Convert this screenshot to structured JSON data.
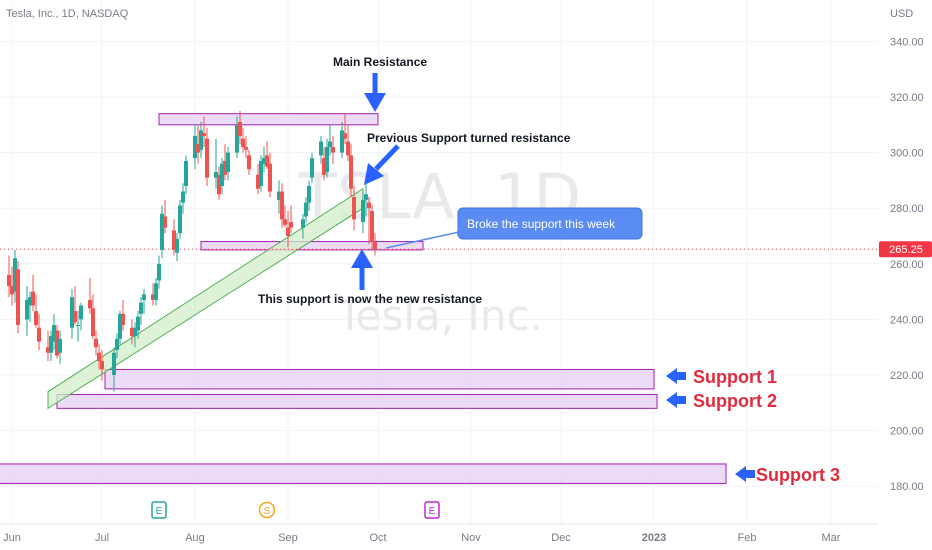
{
  "header": {
    "symbol_info": "Tesla, Inc., 1D, NASDAQ",
    "currency": "USD"
  },
  "watermark": {
    "ticker": "TSLA, 1D",
    "name": "Tesla, Inc."
  },
  "price_tag": "265.25",
  "chart_data": {
    "type": "candlestick",
    "title": "Tesla, Inc., 1D, NASDAQ",
    "ylabel": "USD",
    "ylim": [
      172,
      348
    ],
    "y_ticks": [
      180,
      200,
      220,
      240,
      260,
      280,
      300,
      320,
      340
    ],
    "y_tick_labels": [
      "180.00",
      "200.00",
      "220.00",
      "240.00",
      "260.00",
      "280.00",
      "300.00",
      "320.00",
      "340.00"
    ],
    "x_ticks": [
      "Jun",
      "Jul",
      "Aug",
      "Sep",
      "Oct",
      "Nov",
      "Dec",
      "2023",
      "Feb",
      "Mar"
    ],
    "grid": true,
    "last_price": 265.25,
    "candles": [
      {
        "date": "2022-05-31",
        "o": 256,
        "h": 263,
        "l": 248,
        "c": 252
      },
      {
        "date": "2022-06-01",
        "o": 252,
        "h": 259,
        "l": 245,
        "c": 249
      },
      {
        "date": "2022-06-02",
        "o": 250,
        "h": 265,
        "l": 246,
        "c": 262
      },
      {
        "date": "2022-06-03",
        "o": 258,
        "h": 261,
        "l": 235,
        "c": 238
      },
      {
        "date": "2022-06-06",
        "o": 240,
        "h": 252,
        "l": 234,
        "c": 247
      },
      {
        "date": "2022-06-07",
        "o": 245,
        "h": 250,
        "l": 239,
        "c": 248
      },
      {
        "date": "2022-06-08",
        "o": 250,
        "h": 256,
        "l": 243,
        "c": 245
      },
      {
        "date": "2022-06-09",
        "o": 243,
        "h": 249,
        "l": 237,
        "c": 238
      },
      {
        "date": "2022-06-10",
        "o": 237,
        "h": 242,
        "l": 229,
        "c": 232
      },
      {
        "date": "2022-06-13",
        "o": 230,
        "h": 236,
        "l": 225,
        "c": 228
      },
      {
        "date": "2022-06-14",
        "o": 228,
        "h": 236,
        "l": 225,
        "c": 234
      },
      {
        "date": "2022-06-15",
        "o": 232,
        "h": 242,
        "l": 229,
        "c": 238
      },
      {
        "date": "2022-06-16",
        "o": 236,
        "h": 238,
        "l": 226,
        "c": 227
      },
      {
        "date": "2022-06-17",
        "o": 228,
        "h": 236,
        "l": 224,
        "c": 233
      },
      {
        "date": "2022-06-21",
        "o": 237,
        "h": 251,
        "l": 233,
        "c": 248
      },
      {
        "date": "2022-06-22",
        "o": 243,
        "h": 252,
        "l": 238,
        "c": 239
      },
      {
        "date": "2022-06-23",
        "o": 238,
        "h": 243,
        "l": 232,
        "c": 238
      },
      {
        "date": "2022-06-24",
        "o": 240,
        "h": 246,
        "l": 236,
        "c": 245
      },
      {
        "date": "2022-06-27",
        "o": 247,
        "h": 255,
        "l": 242,
        "c": 244
      },
      {
        "date": "2022-06-28",
        "o": 244,
        "h": 249,
        "l": 233,
        "c": 234
      },
      {
        "date": "2022-06-29",
        "o": 233,
        "h": 236,
        "l": 227,
        "c": 230
      },
      {
        "date": "2022-06-30",
        "o": 228,
        "h": 231,
        "l": 222,
        "c": 225
      },
      {
        "date": "2022-07-01",
        "o": 225,
        "h": 229,
        "l": 218,
        "c": 222
      },
      {
        "date": "2022-07-05",
        "o": 220,
        "h": 230,
        "l": 214,
        "c": 228
      },
      {
        "date": "2022-07-06",
        "o": 229,
        "h": 235,
        "l": 226,
        "c": 233
      },
      {
        "date": "2022-07-07",
        "o": 233,
        "h": 243,
        "l": 231,
        "c": 242
      },
      {
        "date": "2022-07-08",
        "o": 242,
        "h": 247,
        "l": 236,
        "c": 238
      },
      {
        "date": "2022-07-11",
        "o": 237,
        "h": 240,
        "l": 231,
        "c": 234
      },
      {
        "date": "2022-07-12",
        "o": 234,
        "h": 239,
        "l": 230,
        "c": 237
      },
      {
        "date": "2022-07-13",
        "o": 236,
        "h": 243,
        "l": 233,
        "c": 241
      },
      {
        "date": "2022-07-14",
        "o": 242,
        "h": 248,
        "l": 238,
        "c": 246
      },
      {
        "date": "2022-07-15",
        "o": 247,
        "h": 251,
        "l": 242,
        "c": 249
      },
      {
        "date": "2022-07-18",
        "o": 249,
        "h": 253,
        "l": 245,
        "c": 247
      },
      {
        "date": "2022-07-19",
        "o": 247,
        "h": 255,
        "l": 245,
        "c": 253
      },
      {
        "date": "2022-07-20",
        "o": 254,
        "h": 263,
        "l": 251,
        "c": 260
      },
      {
        "date": "2022-07-21",
        "o": 265,
        "h": 281,
        "l": 262,
        "c": 278
      },
      {
        "date": "2022-07-22",
        "o": 277,
        "h": 283,
        "l": 271,
        "c": 273
      },
      {
        "date": "2022-07-25",
        "o": 272,
        "h": 276,
        "l": 263,
        "c": 265
      },
      {
        "date": "2022-07-26",
        "o": 264,
        "h": 271,
        "l": 261,
        "c": 269
      },
      {
        "date": "2022-07-27",
        "o": 271,
        "h": 283,
        "l": 269,
        "c": 281
      },
      {
        "date": "2022-07-28",
        "o": 282,
        "h": 289,
        "l": 278,
        "c": 286
      },
      {
        "date": "2022-07-29",
        "o": 288,
        "h": 299,
        "l": 285,
        "c": 297
      },
      {
        "date": "2022-08-01",
        "o": 298,
        "h": 310,
        "l": 294,
        "c": 306
      },
      {
        "date": "2022-08-02",
        "o": 303,
        "h": 310,
        "l": 296,
        "c": 300
      },
      {
        "date": "2022-08-03",
        "o": 301,
        "h": 311,
        "l": 298,
        "c": 308
      },
      {
        "date": "2022-08-04",
        "o": 307,
        "h": 313,
        "l": 302,
        "c": 306
      },
      {
        "date": "2022-08-05",
        "o": 305,
        "h": 309,
        "l": 288,
        "c": 291
      },
      {
        "date": "2022-08-08",
        "o": 291,
        "h": 305,
        "l": 287,
        "c": 293
      },
      {
        "date": "2022-08-09",
        "o": 292,
        "h": 295,
        "l": 283,
        "c": 285
      },
      {
        "date": "2022-08-10",
        "o": 288,
        "h": 298,
        "l": 285,
        "c": 296
      },
      {
        "date": "2022-08-11",
        "o": 297,
        "h": 303,
        "l": 290,
        "c": 292
      },
      {
        "date": "2022-08-12",
        "o": 293,
        "h": 302,
        "l": 290,
        "c": 300
      },
      {
        "date": "2022-08-15",
        "o": 300,
        "h": 313,
        "l": 298,
        "c": 310
      },
      {
        "date": "2022-08-16",
        "o": 311,
        "h": 315,
        "l": 303,
        "c": 306
      },
      {
        "date": "2022-08-17",
        "o": 305,
        "h": 309,
        "l": 300,
        "c": 302
      },
      {
        "date": "2022-08-18",
        "o": 302,
        "h": 306,
        "l": 298,
        "c": 301
      },
      {
        "date": "2022-08-19",
        "o": 299,
        "h": 301,
        "l": 292,
        "c": 294
      },
      {
        "date": "2022-08-22",
        "o": 292,
        "h": 296,
        "l": 285,
        "c": 287
      },
      {
        "date": "2022-08-23",
        "o": 288,
        "h": 299,
        "l": 286,
        "c": 297
      },
      {
        "date": "2022-08-24",
        "o": 296,
        "h": 302,
        "l": 293,
        "c": 298
      },
      {
        "date": "2022-08-25",
        "o": 299,
        "h": 304,
        "l": 294,
        "c": 295
      },
      {
        "date": "2022-08-26",
        "o": 296,
        "h": 300,
        "l": 284,
        "c": 286
      },
      {
        "date": "2022-08-29",
        "o": 283,
        "h": 290,
        "l": 278,
        "c": 286
      },
      {
        "date": "2022-08-30",
        "o": 286,
        "h": 289,
        "l": 273,
        "c": 276
      },
      {
        "date": "2022-08-31",
        "o": 276,
        "h": 281,
        "l": 273,
        "c": 274
      },
      {
        "date": "2022-09-01",
        "o": 273,
        "h": 279,
        "l": 266,
        "c": 270
      },
      {
        "date": "2022-09-02",
        "o": 275,
        "h": 281,
        "l": 271,
        "c": 273
      },
      {
        "date": "2022-09-06",
        "o": 273,
        "h": 278,
        "l": 269,
        "c": 276
      },
      {
        "date": "2022-09-07",
        "o": 277,
        "h": 284,
        "l": 275,
        "c": 282
      },
      {
        "date": "2022-09-08",
        "o": 282,
        "h": 290,
        "l": 279,
        "c": 288
      },
      {
        "date": "2022-09-09",
        "o": 291,
        "h": 300,
        "l": 289,
        "c": 298
      },
      {
        "date": "2022-09-12",
        "o": 299,
        "h": 306,
        "l": 296,
        "c": 304
      },
      {
        "date": "2022-09-13",
        "o": 298,
        "h": 302,
        "l": 290,
        "c": 292
      },
      {
        "date": "2022-09-14",
        "o": 293,
        "h": 305,
        "l": 291,
        "c": 302
      },
      {
        "date": "2022-09-15",
        "o": 302,
        "h": 310,
        "l": 299,
        "c": 304
      },
      {
        "date": "2022-09-16",
        "o": 302,
        "h": 306,
        "l": 296,
        "c": 300
      },
      {
        "date": "2022-09-19",
        "o": 300,
        "h": 311,
        "l": 298,
        "c": 308
      },
      {
        "date": "2022-09-20",
        "o": 307,
        "h": 314,
        "l": 303,
        "c": 305
      },
      {
        "date": "2022-09-21",
        "o": 304,
        "h": 310,
        "l": 297,
        "c": 299
      },
      {
        "date": "2022-09-22",
        "o": 299,
        "h": 303,
        "l": 284,
        "c": 287
      },
      {
        "date": "2022-09-23",
        "o": 284,
        "h": 288,
        "l": 272,
        "c": 276
      },
      {
        "date": "2022-09-26",
        "o": 275,
        "h": 286,
        "l": 271,
        "c": 283
      },
      {
        "date": "2022-09-27",
        "o": 283,
        "h": 289,
        "l": 277,
        "c": 285
      },
      {
        "date": "2022-09-28",
        "o": 282,
        "h": 284,
        "l": 267,
        "c": 280
      },
      {
        "date": "2022-09-29",
        "o": 279,
        "h": 281,
        "l": 265,
        "c": 268
      },
      {
        "date": "2022-09-30",
        "o": 268,
        "h": 271,
        "l": 263,
        "c": 265.25
      }
    ]
  },
  "zones": [
    {
      "name": "main-resistance",
      "top": 314,
      "bottom": 310
    },
    {
      "name": "support-resistance-line",
      "top": 268,
      "bottom": 265
    },
    {
      "name": "support-1",
      "top": 222,
      "bottom": 215
    },
    {
      "name": "support-2",
      "top": 213,
      "bottom": 208
    },
    {
      "name": "support-3",
      "top": 188,
      "bottom": 181
    }
  ],
  "trend_channel": {
    "start": {
      "date": "2022-06-13",
      "low": 208,
      "high": 214
    },
    "end": {
      "date": "2022-09-26",
      "low": 280,
      "high": 287
    }
  },
  "annotations": {
    "main_resistance": "Main Resistance",
    "prev_support": "Previous Support turned resistance",
    "callout": "Broke the support this week",
    "new_resistance": "This support is now the new resistance",
    "support_1": "Support 1",
    "support_2": "Support 2",
    "support_3": "Support 3"
  },
  "events": [
    {
      "date": "2022-07-20",
      "symbol": "E",
      "kind": "earnings"
    },
    {
      "date": "2022-08-25",
      "symbol": "S",
      "kind": "split"
    },
    {
      "date": "2022-10-19",
      "symbol": "E",
      "kind": "earnings-upcoming"
    }
  ],
  "colors": {
    "up": "#26a69a",
    "down": "#ef5350",
    "zone_fill": "#e9d5f5",
    "zone_stroke": "#a31fb5",
    "channel_fill": "#d3edc9",
    "channel_stroke": "#4caf50",
    "arrow": "#2962ff",
    "callout_fill": "#5a8cf2",
    "price_tag": "#f23645",
    "support_text": "#e02b3c"
  }
}
